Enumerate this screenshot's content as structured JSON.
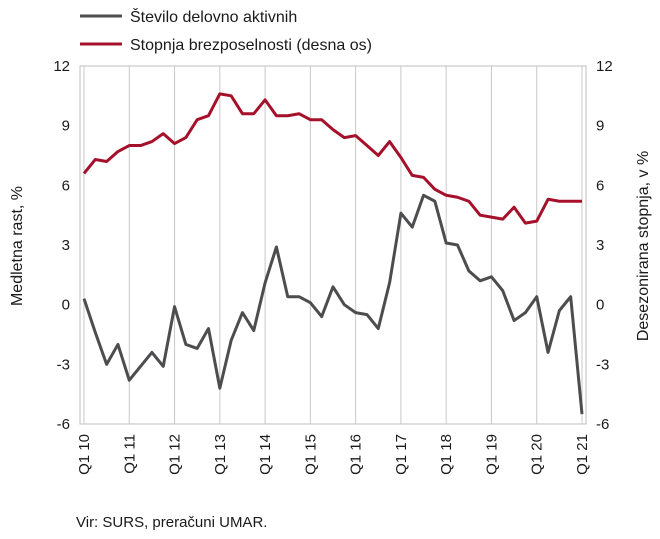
{
  "chart_data": {
    "type": "line",
    "x": [
      "Q1 10",
      "Q2 10",
      "Q3 10",
      "Q4 10",
      "Q1 11",
      "Q2 11",
      "Q3 11",
      "Q4 11",
      "Q1 12",
      "Q2 12",
      "Q3 12",
      "Q4 12",
      "Q1 13",
      "Q2 13",
      "Q3 13",
      "Q4 13",
      "Q1 14",
      "Q2 14",
      "Q3 14",
      "Q4 14",
      "Q1 15",
      "Q2 15",
      "Q3 15",
      "Q4 15",
      "Q1 16",
      "Q2 16",
      "Q3 16",
      "Q4 16",
      "Q1 17",
      "Q2 17",
      "Q3 17",
      "Q4 17",
      "Q1 18",
      "Q2 18",
      "Q3 18",
      "Q4 18",
      "Q1 19",
      "Q2 19",
      "Q3 19",
      "Q4 19",
      "Q1 20",
      "Q2 20",
      "Q3 20",
      "Q4 20",
      "Q1 21"
    ],
    "x_tick_labels": [
      "Q1 10",
      "Q1 11",
      "Q1 12",
      "Q1 13",
      "Q1 14",
      "Q1 15",
      "Q1 16",
      "Q1 17",
      "Q1 18",
      "Q1 19",
      "Q1 20",
      "Q1 21"
    ],
    "series": [
      {
        "name": "Število delovno aktivnih",
        "axis": "left",
        "color": "#4d4d4f",
        "values": [
          0.3,
          -1.4,
          -3.0,
          -2.0,
          -3.8,
          -3.1,
          -2.4,
          -3.1,
          -0.1,
          -2.0,
          -2.2,
          -1.2,
          -4.2,
          -1.8,
          -0.4,
          -1.3,
          1.1,
          2.9,
          0.4,
          0.4,
          0.1,
          -0.6,
          0.9,
          0.0,
          -0.4,
          -0.5,
          -1.2,
          1.1,
          4.6,
          3.9,
          5.5,
          5.2,
          3.1,
          3.0,
          1.7,
          1.2,
          1.4,
          0.7,
          -0.8,
          -0.4,
          0.4,
          -2.4,
          -0.3,
          0.4,
          -5.5
        ]
      },
      {
        "name": "Stopnja brezposelnosti (desna os)",
        "axis": "right",
        "color": "#a5112b",
        "values": [
          6.6,
          7.3,
          7.2,
          7.7,
          8.0,
          8.0,
          8.2,
          8.6,
          8.1,
          8.4,
          9.3,
          9.5,
          10.6,
          10.5,
          9.6,
          9.6,
          10.3,
          9.5,
          9.5,
          9.6,
          9.3,
          9.3,
          8.8,
          8.4,
          8.5,
          8.0,
          7.5,
          8.2,
          7.4,
          6.5,
          6.4,
          5.8,
          5.5,
          5.4,
          5.2,
          4.5,
          4.4,
          4.3,
          4.9,
          4.1,
          4.2,
          5.3,
          5.2,
          5.2,
          5.2
        ]
      }
    ],
    "ylabel": "Medletna rast, %",
    "ylabel_right": "Desezonirana stopnja, v %",
    "ylim": [
      -6,
      12
    ],
    "ylim_right": [
      -6,
      12
    ],
    "yticks": [
      "12",
      "9",
      "6",
      "3",
      "0",
      "-3",
      "-6"
    ],
    "grid": "vertical",
    "legend": "top"
  },
  "source": "Vir: SURS, preračuni UMAR."
}
